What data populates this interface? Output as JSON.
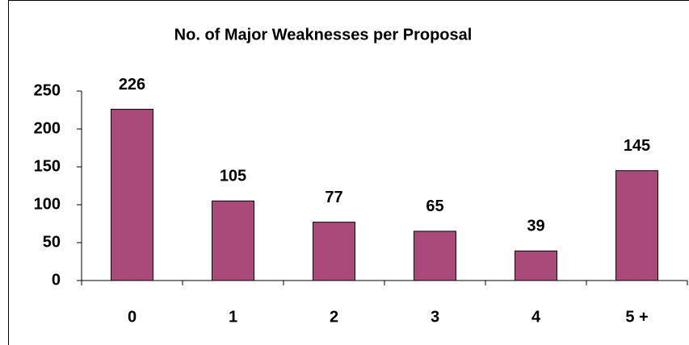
{
  "chart_data": {
    "type": "bar",
    "title": "No. of Major Weaknesses per Proposal",
    "categories": [
      "0",
      "1",
      "2",
      "3",
      "4",
      "5 +"
    ],
    "values": [
      226,
      105,
      77,
      65,
      39,
      145
    ],
    "color": "#a94a7a",
    "ylim": [
      0,
      250
    ],
    "yticks": [
      0,
      50,
      100,
      150,
      200,
      250
    ],
    "grid": false
  }
}
